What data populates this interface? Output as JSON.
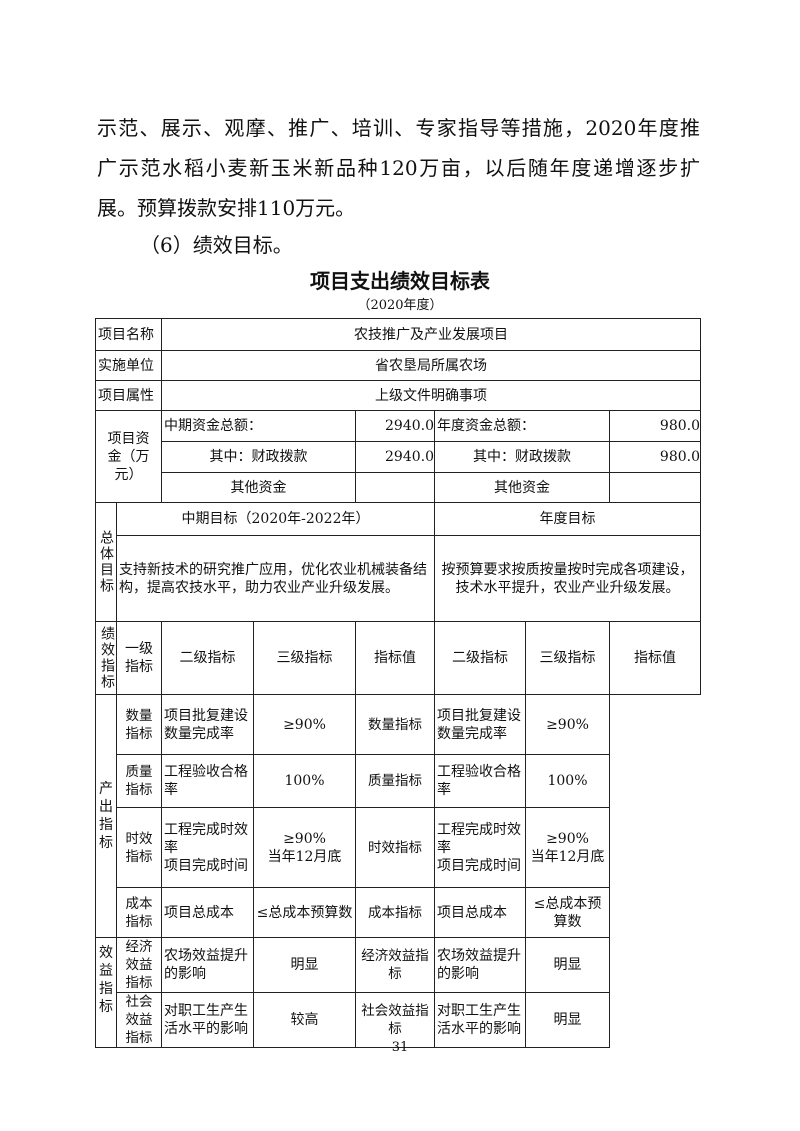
{
  "body": {
    "lines": [
      "示范、展示、观摩、推广、培训、专家指导等措施，2020年度推",
      "广示范水稻小麦新玉米新品种120万亩，以后随年度递增逐步扩",
      "展。预算拨款安排110万元。"
    ],
    "heading": "（6）绩效目标。"
  },
  "table_title": "项目支出绩效目标表",
  "table_subtitle": "（2020年度）",
  "info": [
    {
      "label": "项目名称",
      "value": "农技推广及产业发展项目"
    },
    {
      "label": "实施单位",
      "value": "省农垦局所属农场"
    },
    {
      "label": "项目属性",
      "value": "上级文件明确事项"
    }
  ],
  "funds": {
    "label": "项目资金（万元）",
    "mid_total_label": "中期资金总额：",
    "mid_total": "2940.0",
    "year_total_label": "年度资金总额：",
    "year_total": "980.0",
    "mid_fiscal_label": "其中：财政拨款",
    "mid_fiscal": "2940.0",
    "year_fiscal_label": "其中：财政拨款",
    "year_fiscal": "980.0",
    "mid_other_label": "其他资金",
    "mid_other": "",
    "year_other_label": "其他资金",
    "year_other": ""
  },
  "goals": {
    "label": "总体目标",
    "mid_header": "中期目标（2020年-2022年）",
    "year_header": "年度目标",
    "mid_text": "支持新技术的研究推广应用，优化农业机械装备结构，提高农技水平，助力农业产业升级发展。",
    "year_text": "按预算要求按质按量按时完成各项建设，技术水平提升，农业产业升级发展。"
  },
  "perf": {
    "label": "绩效指标",
    "headers": [
      "一级指标",
      "二级指标",
      "三级指标",
      "指标值",
      "二级指标",
      "三级指标",
      "指标值"
    ],
    "groups": [
      {
        "name": "产出指标",
        "rows": [
          [
            "数量指标",
            "项目批复建设数量完成率",
            "≥90%",
            "数量指标",
            "项目批复建设数量完成率",
            "≥90%"
          ],
          [
            "质量指标",
            "工程验收合格率",
            "100%",
            "质量指标",
            "工程验收合格率",
            "100%"
          ],
          [
            "时效指标",
            "工程完成时效率\n项目完成时间",
            "≥90%\n当年12月底",
            "时效指标",
            "工程完成时效率\n项目完成时间",
            "≥90%\n当年12月底"
          ],
          [
            "成本指标",
            "项目总成本",
            "≤总成本预算数",
            "成本指标",
            "项目总成本",
            "≤总成本预算数"
          ]
        ]
      },
      {
        "name": "效益指标",
        "rows": [
          [
            "经济效益指标",
            "农场效益提升的影响",
            "明显",
            "经济效益指标",
            "农场效益提升的影响",
            "明显"
          ],
          [
            "社会效益指标",
            "对职工生产生活水平的影响",
            "较高",
            "社会效益指标",
            "对职工生产生活水平的影响",
            "明显"
          ]
        ]
      }
    ]
  },
  "page_number": "31"
}
